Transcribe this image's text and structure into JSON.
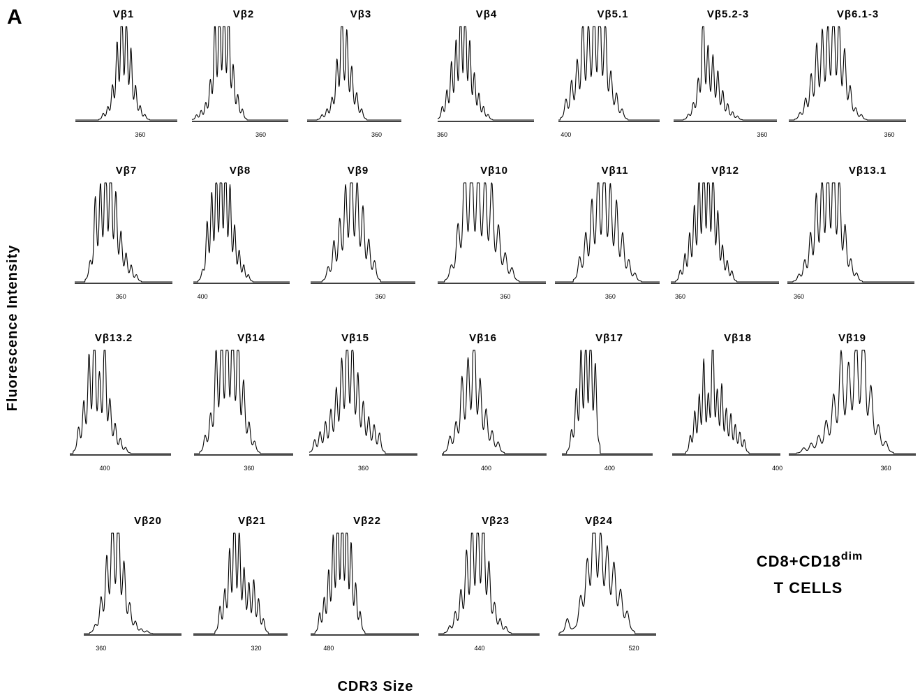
{
  "figure": {
    "panel_label": "A",
    "ylabel": "Fluorescence Intensity",
    "xlabel": "CDR3 Size",
    "legend_line1": "CD8+CD18",
    "legend_sup": "dim",
    "legend_line2": "T CELLS"
  },
  "chart_data": [
    {
      "type": "line",
      "title": "Vβ1",
      "ticks": [
        {
          "value": 360,
          "label": "360"
        }
      ],
      "xlim": [
        318,
        384
      ],
      "peaks": [
        [
          336,
          5
        ],
        [
          339,
          9
        ],
        [
          342,
          25
        ],
        [
          345,
          60
        ],
        [
          348,
          100
        ],
        [
          351,
          85
        ],
        [
          354,
          55
        ],
        [
          357,
          25
        ],
        [
          360,
          10
        ],
        [
          363,
          4
        ]
      ]
    },
    {
      "type": "line",
      "title": "Vβ2",
      "ticks": [
        {
          "value": 360,
          "label": "360"
        }
      ],
      "xlim": [
        315,
        378
      ],
      "peaks": [
        [
          318,
          4
        ],
        [
          321,
          7
        ],
        [
          324,
          12
        ],
        [
          327,
          28
        ],
        [
          330,
          80
        ],
        [
          333,
          95
        ],
        [
          336,
          100
        ],
        [
          339,
          92
        ],
        [
          342,
          40
        ],
        [
          345,
          18
        ],
        [
          348,
          8
        ]
      ]
    },
    {
      "type": "line",
      "title": "Vβ3",
      "ticks": [
        {
          "value": 360,
          "label": "360"
        }
      ],
      "xlim": [
        318,
        375
      ],
      "peaks": [
        [
          327,
          4
        ],
        [
          330,
          8
        ],
        [
          333,
          15
        ],
        [
          336,
          45
        ],
        [
          339,
          100
        ],
        [
          342,
          70
        ],
        [
          345,
          40
        ],
        [
          348,
          20
        ],
        [
          351,
          8
        ]
      ]
    },
    {
      "type": "line",
      "title": "Vβ4",
      "ticks": [
        {
          "value": 360,
          "label": "360"
        }
      ],
      "xlim": [
        357,
        420
      ],
      "peaks": [
        [
          360,
          10
        ],
        [
          363,
          22
        ],
        [
          366,
          45
        ],
        [
          369,
          60
        ],
        [
          372,
          95
        ],
        [
          375,
          100
        ],
        [
          378,
          60
        ],
        [
          381,
          35
        ],
        [
          384,
          20
        ],
        [
          387,
          10
        ],
        [
          390,
          4
        ]
      ]
    },
    {
      "type": "line",
      "title": "Vβ5.1",
      "ticks": [
        {
          "value": 400,
          "label": "400"
        }
      ],
      "xlim": [
        396,
        450
      ],
      "peaks": [
        [
          400,
          16
        ],
        [
          403,
          30
        ],
        [
          406,
          45
        ],
        [
          409,
          80
        ],
        [
          412,
          75
        ],
        [
          415,
          90
        ],
        [
          418,
          100
        ],
        [
          421,
          80
        ],
        [
          424,
          35
        ],
        [
          427,
          20
        ],
        [
          430,
          8
        ]
      ]
    },
    {
      "type": "line",
      "title": "Vβ5.2-3",
      "ticks": [
        {
          "value": 360,
          "label": "360"
        }
      ],
      "xlim": [
        306,
        369
      ],
      "peaks": [
        [
          315,
          4
        ],
        [
          318,
          12
        ],
        [
          321,
          28
        ],
        [
          324,
          100
        ],
        [
          327,
          55
        ],
        [
          330,
          50
        ],
        [
          333,
          38
        ],
        [
          336,
          22
        ],
        [
          339,
          12
        ],
        [
          342,
          6
        ],
        [
          345,
          3
        ]
      ]
    },
    {
      "type": "line",
      "title": "Vβ6.1-3",
      "ticks": [
        {
          "value": 360,
          "label": "360"
        }
      ],
      "xlim": [
        306,
        369
      ],
      "peaks": [
        [
          312,
          5
        ],
        [
          315,
          16
        ],
        [
          318,
          35
        ],
        [
          321,
          60
        ],
        [
          324,
          70
        ],
        [
          327,
          75
        ],
        [
          330,
          100
        ],
        [
          333,
          80
        ],
        [
          336,
          55
        ],
        [
          339,
          25
        ],
        [
          342,
          8
        ],
        [
          345,
          4
        ]
      ]
    },
    {
      "type": "line",
      "title": "Vβ7",
      "ticks": [
        {
          "value": 360,
          "label": "360"
        }
      ],
      "xlim": [
        333,
        390
      ],
      "peaks": [
        [
          342,
          12
        ],
        [
          345,
          65
        ],
        [
          348,
          70
        ],
        [
          351,
          95
        ],
        [
          354,
          100
        ],
        [
          357,
          65
        ],
        [
          360,
          35
        ],
        [
          363,
          20
        ],
        [
          366,
          12
        ],
        [
          369,
          5
        ]
      ]
    },
    {
      "type": "line",
      "title": "Vβ8",
      "ticks": [
        {
          "value": 400,
          "label": "400"
        }
      ],
      "xlim": [
        396,
        438
      ],
      "peaks": [
        [
          400,
          6
        ],
        [
          402,
          45
        ],
        [
          404,
          65
        ],
        [
          406,
          85
        ],
        [
          408,
          100
        ],
        [
          410,
          100
        ],
        [
          412,
          70
        ],
        [
          414,
          40
        ],
        [
          416,
          22
        ],
        [
          418,
          12
        ],
        [
          420,
          5
        ]
      ]
    },
    {
      "type": "line",
      "title": "Vβ9",
      "ticks": [
        {
          "value": 360,
          "label": "360"
        }
      ],
      "xlim": [
        324,
        378
      ],
      "peaks": [
        [
          333,
          10
        ],
        [
          336,
          30
        ],
        [
          339,
          45
        ],
        [
          342,
          70
        ],
        [
          345,
          100
        ],
        [
          348,
          75
        ],
        [
          351,
          55
        ],
        [
          354,
          30
        ],
        [
          357,
          15
        ]
      ]
    },
    {
      "type": "line",
      "title": "Vβ10",
      "ticks": [
        {
          "value": 360,
          "label": "360"
        }
      ],
      "xlim": [
        330,
        378
      ],
      "peaks": [
        [
          336,
          10
        ],
        [
          339,
          40
        ],
        [
          342,
          95
        ],
        [
          345,
          100
        ],
        [
          348,
          85
        ],
        [
          351,
          80
        ],
        [
          354,
          75
        ],
        [
          357,
          40
        ],
        [
          360,
          20
        ],
        [
          363,
          10
        ]
      ]
    },
    {
      "type": "line",
      "title": "Vβ11",
      "ticks": [
        {
          "value": 360,
          "label": "360"
        }
      ],
      "xlim": [
        333,
        384
      ],
      "peaks": [
        [
          345,
          18
        ],
        [
          348,
          35
        ],
        [
          351,
          60
        ],
        [
          354,
          80
        ],
        [
          357,
          100
        ],
        [
          360,
          70
        ],
        [
          363,
          60
        ],
        [
          366,
          35
        ],
        [
          369,
          15
        ],
        [
          372,
          6
        ]
      ]
    },
    {
      "type": "line",
      "title": "Vβ12",
      "ticks": [
        {
          "value": 360,
          "label": "360"
        }
      ],
      "xlim": [
        354,
        423
      ],
      "peaks": [
        [
          360,
          8
        ],
        [
          363,
          20
        ],
        [
          366,
          35
        ],
        [
          369,
          55
        ],
        [
          372,
          80
        ],
        [
          375,
          100
        ],
        [
          378,
          100
        ],
        [
          381,
          90
        ],
        [
          384,
          50
        ],
        [
          387,
          25
        ],
        [
          390,
          15
        ],
        [
          393,
          8
        ]
      ]
    },
    {
      "type": "line",
      "title": "Vβ13.1",
      "ticks": [
        {
          "value": 360,
          "label": "360"
        }
      ],
      "xlim": [
        354,
        420
      ],
      "peaks": [
        [
          360,
          5
        ],
        [
          363,
          15
        ],
        [
          366,
          35
        ],
        [
          369,
          65
        ],
        [
          372,
          80
        ],
        [
          375,
          100
        ],
        [
          378,
          100
        ],
        [
          381,
          80
        ],
        [
          384,
          40
        ],
        [
          387,
          15
        ],
        [
          390,
          6
        ]
      ]
    },
    {
      "type": "line",
      "title": "Vβ13.2",
      "ticks": [
        {
          "value": 400,
          "label": "400"
        }
      ],
      "xlim": [
        380,
        438
      ],
      "peaks": [
        [
          385,
          18
        ],
        [
          388,
          35
        ],
        [
          391,
          70
        ],
        [
          394,
          100
        ],
        [
          397,
          50
        ],
        [
          400,
          95
        ],
        [
          403,
          35
        ],
        [
          406,
          20
        ],
        [
          409,
          10
        ],
        [
          412,
          4
        ]
      ]
    },
    {
      "type": "line",
      "title": "Vβ14",
      "ticks": [
        {
          "value": 360,
          "label": "360"
        }
      ],
      "xlim": [
        330,
        384
      ],
      "peaks": [
        [
          336,
          12
        ],
        [
          339,
          25
        ],
        [
          342,
          75
        ],
        [
          345,
          95
        ],
        [
          348,
          100
        ],
        [
          351,
          100
        ],
        [
          354,
          90
        ],
        [
          357,
          50
        ],
        [
          360,
          20
        ],
        [
          363,
          8
        ]
      ]
    },
    {
      "type": "line",
      "title": "Vβ15",
      "ticks": [
        {
          "value": 360,
          "label": "360"
        }
      ],
      "xlim": [
        330,
        390
      ],
      "peaks": [
        [
          333,
          10
        ],
        [
          336,
          15
        ],
        [
          339,
          22
        ],
        [
          342,
          30
        ],
        [
          345,
          45
        ],
        [
          348,
          65
        ],
        [
          351,
          100
        ],
        [
          354,
          85
        ],
        [
          357,
          55
        ],
        [
          360,
          35
        ],
        [
          363,
          25
        ],
        [
          366,
          20
        ],
        [
          369,
          15
        ]
      ]
    },
    {
      "type": "line",
      "title": "Vβ16",
      "ticks": [
        {
          "value": 400,
          "label": "400"
        }
      ],
      "xlim": [
        378,
        430
      ],
      "peaks": [
        [
          382,
          12
        ],
        [
          385,
          20
        ],
        [
          388,
          55
        ],
        [
          391,
          65
        ],
        [
          394,
          100
        ],
        [
          397,
          50
        ],
        [
          400,
          30
        ],
        [
          403,
          15
        ],
        [
          406,
          8
        ]
      ]
    },
    {
      "type": "line",
      "title": "Vβ17",
      "ticks": [
        {
          "value": 400,
          "label": "400"
        }
      ],
      "xlim": [
        390,
        409
      ],
      "peaks": [
        [
          392,
          15
        ],
        [
          393,
          45
        ],
        [
          394,
          75
        ],
        [
          395,
          85
        ],
        [
          396,
          100
        ],
        [
          397,
          65
        ]
      ]
    },
    {
      "type": "line",
      "title": "Vβ18",
      "ticks": [
        {
          "value": 400,
          "label": "400"
        }
      ],
      "xlim": [
        330,
        402
      ],
      "peaks": [
        [
          342,
          12
        ],
        [
          345,
          30
        ],
        [
          348,
          40
        ],
        [
          351,
          70
        ],
        [
          354,
          35
        ],
        [
          357,
          100
        ],
        [
          360,
          40
        ],
        [
          363,
          50
        ],
        [
          366,
          30
        ],
        [
          369,
          28
        ],
        [
          372,
          20
        ],
        [
          375,
          15
        ],
        [
          378,
          10
        ]
      ]
    },
    {
      "type": "line",
      "title": "Vβ19",
      "ticks": [
        {
          "value": 360,
          "label": "360"
        }
      ],
      "xlim": [
        321,
        372
      ],
      "peaks": [
        [
          327,
          4
        ],
        [
          330,
          7
        ],
        [
          333,
          12
        ],
        [
          336,
          22
        ],
        [
          339,
          40
        ],
        [
          342,
          75
        ],
        [
          345,
          60
        ],
        [
          348,
          88
        ],
        [
          351,
          100
        ],
        [
          354,
          45
        ],
        [
          357,
          18
        ],
        [
          360,
          8
        ]
      ]
    },
    {
      "type": "line",
      "title": "Vβ20",
      "ticks": [
        {
          "value": 360,
          "label": "360"
        }
      ],
      "xlim": [
        351,
        402
      ],
      "peaks": [
        [
          357,
          5
        ],
        [
          360,
          25
        ],
        [
          363,
          55
        ],
        [
          366,
          95
        ],
        [
          369,
          100
        ],
        [
          372,
          50
        ],
        [
          375,
          20
        ],
        [
          378,
          8
        ],
        [
          381,
          3
        ],
        [
          384,
          2
        ]
      ]
    },
    {
      "type": "line",
      "title": "Vβ21",
      "ticks": [
        {
          "value": 320,
          "label": "320"
        }
      ],
      "xlim": [
        294,
        333
      ],
      "peaks": [
        [
          305,
          20
        ],
        [
          307,
          30
        ],
        [
          309,
          60
        ],
        [
          311,
          100
        ],
        [
          313,
          75
        ],
        [
          315,
          45
        ],
        [
          317,
          35
        ],
        [
          319,
          40
        ],
        [
          321,
          25
        ],
        [
          323,
          10
        ]
      ]
    },
    {
      "type": "line",
      "title": "Vβ22",
      "ticks": [
        {
          "value": 480,
          "label": "480"
        }
      ],
      "xlim": [
        468,
        540
      ],
      "peaks": [
        [
          474,
          15
        ],
        [
          477,
          25
        ],
        [
          480,
          45
        ],
        [
          483,
          70
        ],
        [
          486,
          100
        ],
        [
          489,
          95
        ],
        [
          492,
          100
        ],
        [
          495,
          65
        ],
        [
          498,
          35
        ],
        [
          501,
          15
        ]
      ]
    },
    {
      "type": "line",
      "title": "Vβ23",
      "ticks": [
        {
          "value": 440,
          "label": "440"
        }
      ],
      "xlim": [
        418,
        472
      ],
      "peaks": [
        [
          424,
          5
        ],
        [
          427,
          15
        ],
        [
          430,
          30
        ],
        [
          433,
          60
        ],
        [
          436,
          85
        ],
        [
          439,
          90
        ],
        [
          442,
          100
        ],
        [
          445,
          50
        ],
        [
          448,
          20
        ],
        [
          451,
          10
        ],
        [
          454,
          5
        ]
      ]
    },
    {
      "type": "line",
      "title": "Vβ24",
      "ticks": [
        {
          "value": 520,
          "label": "520"
        }
      ],
      "xlim": [
        486,
        530
      ],
      "peaks": [
        [
          490,
          12
        ],
        [
          496,
          25
        ],
        [
          499,
          50
        ],
        [
          502,
          100
        ],
        [
          505,
          70
        ],
        [
          508,
          60
        ],
        [
          511,
          50
        ],
        [
          514,
          30
        ],
        [
          517,
          15
        ]
      ]
    }
  ]
}
